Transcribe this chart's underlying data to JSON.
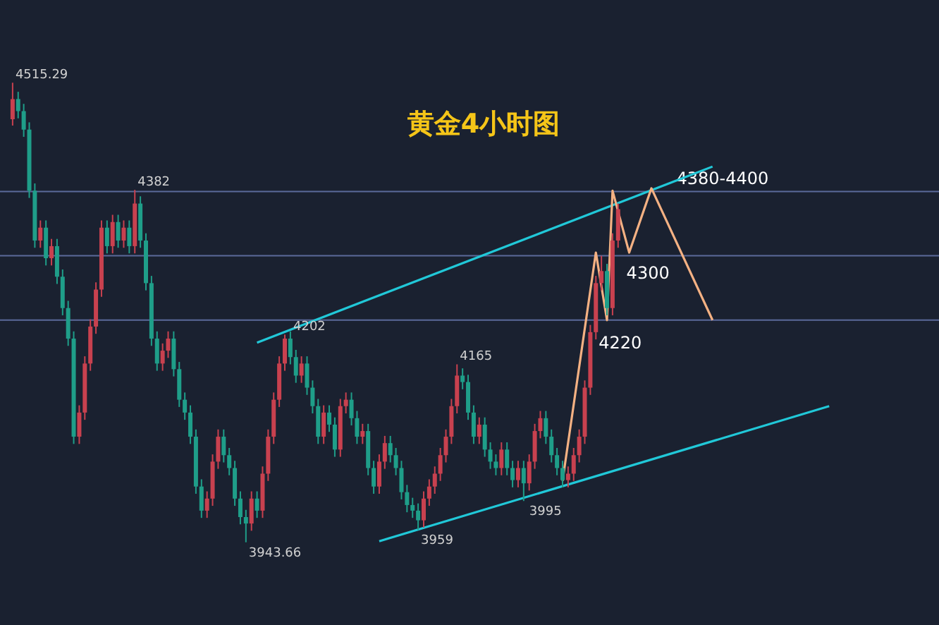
{
  "chart_data": {
    "type": "candlestick",
    "title": "黄金4小时图",
    "tick_labels": false,
    "categories": [
      null,
      null,
      null,
      null,
      null,
      null,
      null,
      null,
      null,
      null,
      null,
      null,
      null,
      null,
      null,
      null,
      null,
      null,
      null,
      null,
      null,
      null,
      null,
      null,
      null,
      null,
      null,
      null,
      null,
      null,
      null,
      null,
      null,
      null,
      null,
      null,
      null,
      null,
      null,
      null,
      null,
      null,
      null,
      null,
      null,
      null,
      null,
      null,
      null,
      null,
      null,
      null,
      null,
      null,
      null,
      null,
      null,
      null,
      null,
      null,
      null,
      null,
      null,
      null,
      null,
      null,
      null,
      null,
      null,
      null,
      null,
      null,
      null,
      null,
      null,
      null,
      null,
      null,
      null,
      null,
      null,
      null,
      null,
      null,
      null,
      null,
      null,
      null,
      null,
      null,
      null,
      null,
      null,
      null,
      null,
      null,
      null,
      null,
      null,
      null,
      null,
      null,
      null,
      null,
      null,
      null,
      null,
      null,
      null,
      null,
      null,
      null,
      null,
      null,
      null,
      null,
      null,
      null,
      null,
      null,
      null,
      null,
      null,
      null,
      null,
      null,
      null,
      null,
      null,
      null,
      null,
      null,
      null,
      null,
      null,
      null,
      null,
      null,
      null,
      null,
      null,
      null,
      null,
      null,
      null,
      null,
      null,
      null
    ],
    "ohlc": [
      [
        4470,
        4515.29,
        4462,
        4495
      ],
      [
        4495,
        4504,
        4471,
        4480
      ],
      [
        4480,
        4489,
        4448,
        4457
      ],
      [
        4457,
        4466,
        4372,
        4381
      ],
      [
        4381,
        4390,
        4310,
        4319
      ],
      [
        4319,
        4344,
        4310,
        4335
      ],
      [
        4335,
        4344,
        4288,
        4297
      ],
      [
        4297,
        4321,
        4288,
        4312
      ],
      [
        4312,
        4321,
        4265,
        4274
      ],
      [
        4274,
        4283,
        4226,
        4235
      ],
      [
        4235,
        4244,
        4188,
        4197
      ],
      [
        4197,
        4206,
        4066,
        4075
      ],
      [
        4075,
        4114,
        4066,
        4105
      ],
      [
        4105,
        4175,
        4096,
        4166
      ],
      [
        4166,
        4221,
        4157,
        4212
      ],
      [
        4212,
        4267,
        4203,
        4258
      ],
      [
        4258,
        4344,
        4249,
        4335
      ],
      [
        4335,
        4344,
        4303,
        4312
      ],
      [
        4312,
        4351,
        4303,
        4342
      ],
      [
        4342,
        4351,
        4310,
        4319
      ],
      [
        4319,
        4344,
        4310,
        4335
      ],
      [
        4335,
        4344,
        4303,
        4312
      ],
      [
        4312,
        4382,
        4303,
        4365
      ],
      [
        4365,
        4374,
        4310,
        4319
      ],
      [
        4319,
        4328,
        4257,
        4266
      ],
      [
        4266,
        4275,
        4188,
        4197
      ],
      [
        4197,
        4206,
        4157,
        4166
      ],
      [
        4166,
        4191,
        4157,
        4182
      ],
      [
        4182,
        4206,
        4173,
        4197
      ],
      [
        4197,
        4206,
        4150,
        4159
      ],
      [
        4159,
        4168,
        4112,
        4121
      ],
      [
        4121,
        4130,
        4096,
        4105
      ],
      [
        4105,
        4114,
        4066,
        4075
      ],
      [
        4075,
        4084,
        4004,
        4013
      ],
      [
        4013,
        4022,
        3974,
        3983
      ],
      [
        3983,
        4007,
        3974,
        3998
      ],
      [
        3998,
        4053,
        3989,
        4044
      ],
      [
        4044,
        4084,
        4035,
        4075
      ],
      [
        4075,
        4084,
        4043,
        4052
      ],
      [
        4052,
        4061,
        4027,
        4036
      ],
      [
        4036,
        4045,
        3989,
        3998
      ],
      [
        3998,
        4007,
        3966,
        3975
      ],
      [
        3975,
        3984,
        3943.66,
        3967
      ],
      [
        3967,
        4007,
        3958,
        3998
      ],
      [
        3998,
        4007,
        3974,
        3983
      ],
      [
        3983,
        4038,
        3974,
        4029
      ],
      [
        4029,
        4084,
        4020,
        4075
      ],
      [
        4075,
        4130,
        4066,
        4121
      ],
      [
        4121,
        4175,
        4112,
        4166
      ],
      [
        4166,
        4202,
        4157,
        4197
      ],
      [
        4197,
        4206,
        4165,
        4174
      ],
      [
        4174,
        4183,
        4142,
        4151
      ],
      [
        4151,
        4175,
        4142,
        4166
      ],
      [
        4166,
        4175,
        4127,
        4136
      ],
      [
        4136,
        4145,
        4104,
        4113
      ],
      [
        4113,
        4122,
        4066,
        4075
      ],
      [
        4075,
        4114,
        4066,
        4105
      ],
      [
        4105,
        4114,
        4081,
        4090
      ],
      [
        4090,
        4099,
        4050,
        4059
      ],
      [
        4059,
        4122,
        4050,
        4113
      ],
      [
        4113,
        4130,
        4104,
        4121
      ],
      [
        4121,
        4130,
        4089,
        4098
      ],
      [
        4098,
        4107,
        4066,
        4075
      ],
      [
        4075,
        4091,
        4066,
        4082
      ],
      [
        4082,
        4091,
        4027,
        4036
      ],
      [
        4036,
        4045,
        4004,
        4013
      ],
      [
        4013,
        4053,
        4004,
        4044
      ],
      [
        4044,
        4076,
        4035,
        4067
      ],
      [
        4067,
        4076,
        4043,
        4052
      ],
      [
        4052,
        4061,
        4027,
        4036
      ],
      [
        4036,
        4045,
        3997,
        4006
      ],
      [
        4006,
        4015,
        3981,
        3990
      ],
      [
        3990,
        3999,
        3974,
        3983
      ],
      [
        3983,
        3992,
        3959,
        3971
      ],
      [
        3971,
        4007,
        3962,
        3998
      ],
      [
        3998,
        4022,
        3989,
        4013
      ],
      [
        4013,
        4038,
        4004,
        4029
      ],
      [
        4029,
        4061,
        4020,
        4052
      ],
      [
        4052,
        4084,
        4043,
        4075
      ],
      [
        4075,
        4122,
        4066,
        4113
      ],
      [
        4113,
        4165,
        4104,
        4151
      ],
      [
        4151,
        4160,
        4134,
        4143
      ],
      [
        4143,
        4152,
        4096,
        4105
      ],
      [
        4105,
        4114,
        4066,
        4075
      ],
      [
        4075,
        4099,
        4066,
        4090
      ],
      [
        4090,
        4099,
        4050,
        4059
      ],
      [
        4059,
        4068,
        4035,
        4044
      ],
      [
        4044,
        4053,
        4027,
        4036
      ],
      [
        4036,
        4068,
        4027,
        4059
      ],
      [
        4059,
        4068,
        4027,
        4036
      ],
      [
        4036,
        4045,
        4012,
        4021
      ],
      [
        4021,
        4045,
        4012,
        4036
      ],
      [
        4036,
        4045,
        3995,
        4017
      ],
      [
        4017,
        4053,
        4008,
        4044
      ],
      [
        4044,
        4091,
        4035,
        4082
      ],
      [
        4082,
        4107,
        4073,
        4098
      ],
      [
        4098,
        4107,
        4066,
        4075
      ],
      [
        4075,
        4084,
        4043,
        4052
      ],
      [
        4052,
        4061,
        4027,
        4036
      ],
      [
        4036,
        4045,
        4012,
        4021
      ],
      [
        4021,
        4038,
        4012,
        4029
      ],
      [
        4029,
        4061,
        4020,
        4052
      ],
      [
        4052,
        4084,
        4043,
        4075
      ],
      [
        4075,
        4145,
        4066,
        4136
      ],
      [
        4136,
        4214,
        4127,
        4205
      ],
      [
        4205,
        4275,
        4196,
        4266
      ],
      [
        4266,
        4300,
        4257,
        4281
      ],
      [
        4281,
        4290,
        4226,
        4235
      ],
      [
        4235,
        4328,
        4226,
        4319
      ],
      [
        4319,
        4365,
        4310,
        4358
      ],
      null,
      null,
      null,
      null,
      null,
      null,
      null,
      null,
      null,
      null,
      null,
      null,
      null,
      null,
      null,
      null,
      null,
      null,
      null,
      null,
      null,
      null,
      null,
      null,
      null,
      null,
      null,
      null,
      null,
      null,
      null,
      null,
      null,
      null,
      null,
      null,
      null,
      null
    ],
    "colors": [
      "#c8414f",
      "#1f9e89",
      "#1f9e89",
      "#1f9e89",
      "#1f9e89",
      "#c8414f",
      "#1f9e89",
      "#c8414f",
      "#1f9e89",
      "#1f9e89",
      "#1f9e89",
      "#1f9e89",
      "#c8414f",
      "#c8414f",
      "#c8414f",
      "#c8414f",
      "#c8414f",
      "#1f9e89",
      "#c8414f",
      "#1f9e89",
      "#c8414f",
      "#1f9e89",
      "#c8414f",
      "#1f9e89",
      "#1f9e89",
      "#1f9e89",
      "#1f9e89",
      "#c8414f",
      "#c8414f",
      "#1f9e89",
      "#1f9e89",
      "#1f9e89",
      "#1f9e89",
      "#1f9e89",
      "#1f9e89",
      "#c8414f",
      "#c8414f",
      "#c8414f",
      "#1f9e89",
      "#1f9e89",
      "#1f9e89",
      "#1f9e89",
      "#1f9e89",
      "#c8414f",
      "#1f9e89",
      "#c8414f",
      "#c8414f",
      "#c8414f",
      "#c8414f",
      "#c8414f",
      "#1f9e89",
      "#1f9e89",
      "#c8414f",
      "#1f9e89",
      "#1f9e89",
      "#1f9e89",
      "#c8414f",
      "#1f9e89",
      "#1f9e89",
      "#c8414f",
      "#c8414f",
      "#1f9e89",
      "#1f9e89",
      "#c8414f",
      "#1f9e89",
      "#1f9e89",
      "#c8414f",
      "#c8414f",
      "#1f9e89",
      "#1f9e89",
      "#1f9e89",
      "#1f9e89",
      "#1f9e89",
      "#1f9e89",
      "#c8414f",
      "#c8414f",
      "#c8414f",
      "#c8414f",
      "#c8414f",
      "#c8414f",
      "#c8414f",
      "#1f9e89",
      "#1f9e89",
      "#1f9e89",
      "#c8414f",
      "#1f9e89",
      "#1f9e89",
      "#1f9e89",
      "#c8414f",
      "#1f9e89",
      "#1f9e89",
      "#c8414f",
      "#1f9e89",
      "#c8414f",
      "#c8414f",
      "#c8414f",
      "#1f9e89",
      "#1f9e89",
      "#1f9e89",
      "#1f9e89",
      "#c8414f",
      "#c8414f",
      "#c8414f",
      "#c8414f",
      "#c8414f",
      "#c8414f",
      "#c8414f",
      "#1f9e89",
      "#c8414f",
      "#c8414f",
      null,
      null,
      null,
      null,
      null,
      null,
      null,
      null,
      null,
      null,
      null,
      null,
      null,
      null,
      null,
      null,
      null,
      null,
      null,
      null,
      null,
      null,
      null,
      null,
      null,
      null,
      null,
      null,
      null,
      null,
      null,
      null,
      null,
      null,
      null,
      null,
      null,
      null
    ],
    "series": [
      {
        "type": "line",
        "color": "#21c8d8",
        "values": [
          null,
          null,
          null,
          null,
          null,
          null,
          null,
          null,
          null,
          null,
          null,
          null,
          null,
          null,
          null,
          null,
          null,
          null,
          null,
          null,
          null,
          null,
          null,
          null,
          null,
          null,
          null,
          null,
          null,
          null,
          null,
          null,
          null,
          null,
          null,
          null,
          null,
          null,
          null,
          null,
          null,
          null,
          null,
          null,
          4192,
          null,
          null,
          null,
          null,
          null,
          null,
          null,
          null,
          null,
          null,
          null,
          null,
          null,
          null,
          null,
          null,
          null,
          null,
          null,
          null,
          null,
          null,
          null,
          null,
          null,
          null,
          null,
          null,
          null,
          null,
          null,
          null,
          null,
          null,
          null,
          null,
          null,
          null,
          null,
          null,
          null,
          null,
          null,
          null,
          null,
          null,
          null,
          null,
          null,
          null,
          null,
          null,
          null,
          null,
          null,
          null,
          null,
          null,
          null,
          null,
          null,
          null,
          null,
          null,
          null,
          null,
          null,
          null,
          null,
          null,
          null,
          null,
          null,
          null,
          null,
          null,
          null,
          null,
          null,
          null,
          null,
          4411,
          null,
          null,
          null,
          null,
          null,
          null,
          null,
          null,
          null,
          null,
          null,
          null,
          null,
          null,
          null,
          null,
          null,
          null,
          null,
          null,
          null
        ]
      },
      {
        "type": "line",
        "color": "#21c8d8",
        "values": [
          null,
          null,
          null,
          null,
          null,
          null,
          null,
          null,
          null,
          null,
          null,
          null,
          null,
          null,
          null,
          null,
          null,
          null,
          null,
          null,
          null,
          null,
          null,
          null,
          null,
          null,
          null,
          null,
          null,
          null,
          null,
          null,
          null,
          null,
          null,
          null,
          null,
          null,
          null,
          null,
          null,
          null,
          null,
          null,
          null,
          null,
          null,
          null,
          null,
          null,
          null,
          null,
          null,
          null,
          null,
          null,
          null,
          null,
          null,
          null,
          null,
          null,
          null,
          null,
          null,
          null,
          3945,
          null,
          null,
          null,
          null,
          null,
          null,
          null,
          null,
          null,
          null,
          null,
          null,
          null,
          null,
          null,
          null,
          null,
          null,
          null,
          null,
          null,
          null,
          null,
          null,
          null,
          null,
          null,
          null,
          null,
          null,
          null,
          null,
          null,
          null,
          null,
          null,
          null,
          null,
          null,
          null,
          null,
          null,
          null,
          null,
          null,
          null,
          null,
          null,
          null,
          null,
          null,
          null,
          null,
          null,
          null,
          null,
          null,
          null,
          null,
          null,
          null,
          null,
          null,
          null,
          null,
          null,
          null,
          null,
          null,
          null,
          null,
          null,
          null,
          null,
          null,
          null,
          null,
          null,
          null,
          null,
          4113
        ]
      },
      {
        "type": "line",
        "color": "#f4b183",
        "values": [
          null,
          null,
          null,
          null,
          null,
          null,
          null,
          null,
          null,
          null,
          null,
          null,
          null,
          null,
          null,
          null,
          null,
          null,
          null,
          null,
          null,
          null,
          null,
          null,
          null,
          null,
          null,
          null,
          null,
          null,
          null,
          null,
          null,
          null,
          null,
          null,
          null,
          null,
          null,
          null,
          null,
          null,
          null,
          null,
          null,
          null,
          null,
          null,
          null,
          null,
          null,
          null,
          null,
          null,
          null,
          null,
          null,
          null,
          null,
          null,
          null,
          null,
          null,
          null,
          null,
          null,
          null,
          null,
          null,
          null,
          null,
          null,
          null,
          null,
          null,
          null,
          null,
          null,
          null,
          null,
          null,
          null,
          null,
          null,
          null,
          null,
          null,
          null,
          null,
          null,
          null,
          null,
          null,
          null,
          null,
          null,
          null,
          null,
          null,
          4020,
          null,
          null,
          null,
          null,
          null,
          4304,
          null,
          4220,
          4381,
          null,
          null,
          4304,
          null,
          null,
          null,
          4384,
          null,
          null,
          null,
          null,
          null,
          null,
          null,
          null,
          null,
          null,
          4220,
          null,
          null,
          null,
          null,
          null,
          null,
          null,
          null,
          null,
          null,
          null,
          null,
          null,
          null,
          null,
          null,
          null,
          null,
          null,
          null,
          null
        ]
      }
    ],
    "ref_lines": [
      {
        "axis": "y",
        "value": 4380,
        "label": "4380-4400",
        "color": "#5b6a9a"
      },
      {
        "axis": "y",
        "value": 4300,
        "label": "4300",
        "color": "#5b6a9a"
      },
      {
        "axis": "y",
        "value": 4220,
        "label": "4220",
        "color": "#5b6a9a"
      }
    ],
    "annotations": [
      "4515.29",
      "4382",
      "4202",
      "4165",
      "3959",
      "3995",
      "3943.66"
    ]
  }
}
